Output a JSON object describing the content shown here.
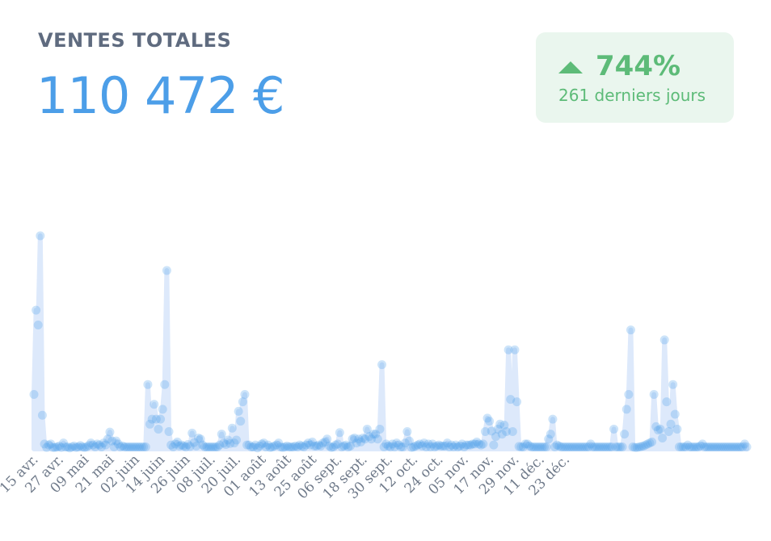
{
  "card": {
    "title": "VENTES TOTALES",
    "total": "110 472 €",
    "badge": {
      "change": "744%",
      "period": "261 derniers jours",
      "direction_icon": "triangle-up-icon",
      "color": "#5dbb78",
      "background": "#eaf6ee"
    }
  },
  "chart_data": {
    "type": "area",
    "title": "",
    "xlabel": "",
    "ylabel": "",
    "x_tick_labels": [
      "15 avr.",
      "27 avr.",
      "09 mai",
      "21 mai",
      "02 juin",
      "14 juin",
      "26 juin",
      "08 juil.",
      "20 juil.",
      "01 août",
      "13 août",
      "25 août",
      "06 sept.",
      "18 sept.",
      "30 sept.",
      "12 oct.",
      "24 oct.",
      "05 nov.",
      "17 nov.",
      "29 nov.",
      "11 déc.",
      "23 déc."
    ],
    "tick_every_days": 12,
    "grid": false,
    "color": "#4c9ee8",
    "fill_color": "#dde9fb",
    "series": [
      {
        "values": [
          1100,
          2800,
          2500,
          4300,
          680,
          100,
          30,
          80,
          100,
          30,
          30,
          40,
          60,
          30,
          120,
          40,
          40,
          20,
          40,
          60,
          30,
          40,
          70,
          40,
          30,
          40,
          70,
          120,
          80,
          40,
          100,
          80,
          40,
          120,
          80,
          200,
          340,
          160,
          40,
          160,
          100,
          40,
          60,
          40,
          40,
          40,
          40,
          40,
          40,
          40,
          40,
          40,
          40,
          40,
          1300,
          500,
          600,
          900,
          600,
          400,
          600,
          800,
          1300,
          3600,
          350,
          80,
          40,
          100,
          140,
          60,
          80,
          60,
          40,
          90,
          50,
          320,
          130,
          60,
          220,
          200,
          80,
          40,
          40,
          40,
          40,
          40,
          40,
          40,
          80,
          300,
          120,
          90,
          180,
          110,
          420,
          120,
          180,
          760,
          560,
          950,
          1100,
          80,
          80,
          40,
          40,
          80,
          20,
          60,
          100,
          120,
          40,
          80,
          30,
          40,
          60,
          80,
          120,
          40,
          30,
          40,
          60,
          40,
          40,
          40,
          60,
          40,
          80,
          60,
          40,
          80,
          120,
          80,
          140,
          60,
          60,
          80,
          60,
          120,
          140,
          200,
          60,
          30,
          40,
          80,
          100,
          330,
          40,
          60,
          80,
          40,
          60,
          200,
          220,
          120,
          200,
          140,
          220,
          200,
          400,
          250,
          200,
          300,
          300,
          200,
          400,
          1700,
          40,
          100,
          60,
          40,
          100,
          40,
          120,
          80,
          40,
          40,
          120,
          350,
          160,
          30,
          40,
          60,
          80,
          100,
          60,
          120,
          40,
          100,
          40,
          100,
          40,
          60,
          80,
          60,
          60,
          60,
          120,
          40,
          80,
          40,
          80,
          40,
          60,
          100,
          40,
          80,
          80,
          80,
          100,
          100,
          140,
          100,
          80,
          100,
          350,
          620,
          560,
          360,
          80,
          250,
          400,
          500,
          300,
          480,
          350,
          2000,
          1000,
          350,
          2000,
          950,
          50,
          40,
          40,
          100,
          100,
          60,
          40,
          40,
          40,
          40,
          40,
          40,
          40,
          40,
          200,
          300,
          600,
          40,
          80,
          60,
          40,
          40,
          40,
          40,
          40,
          40,
          40,
          40,
          40,
          40,
          40,
          40,
          40,
          40,
          100,
          40,
          40,
          40,
          40,
          40,
          40,
          40,
          40,
          40,
          40,
          400,
          40,
          40,
          40,
          40,
          300,
          800,
          1100,
          2400,
          40,
          30,
          30,
          40,
          50,
          60,
          80,
          100,
          120,
          140,
          1100,
          450,
          380,
          400,
          220,
          2200,
          950,
          350,
          500,
          1300,
          700,
          400,
          40,
          40,
          40,
          40,
          80,
          40,
          40,
          40,
          40,
          40,
          60,
          100,
          40,
          40,
          40,
          40,
          40,
          40,
          40,
          40,
          40,
          40,
          40,
          40,
          40,
          40,
          40,
          40,
          40,
          40,
          40,
          100,
          40
        ]
      }
    ]
  }
}
